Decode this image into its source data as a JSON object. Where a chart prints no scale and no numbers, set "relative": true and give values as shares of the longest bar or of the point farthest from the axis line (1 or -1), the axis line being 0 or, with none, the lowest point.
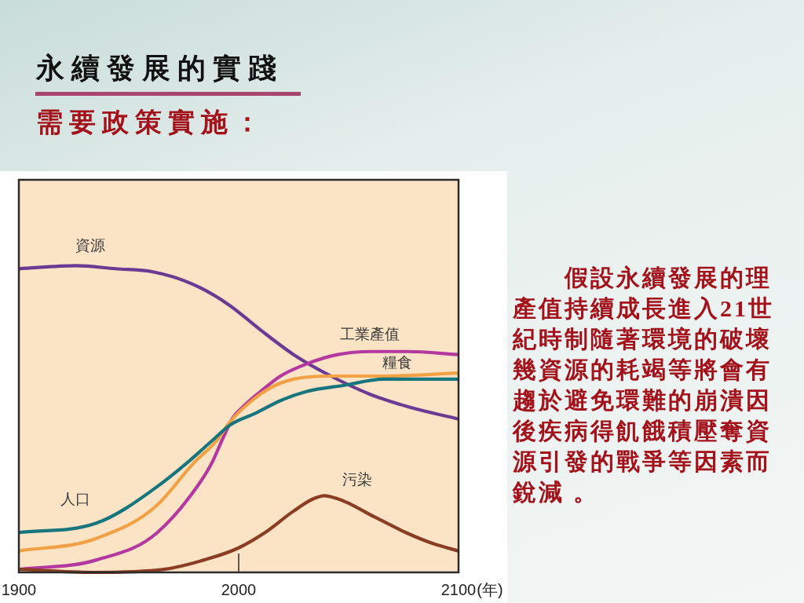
{
  "chart_data": {
    "type": "line",
    "title": "永續發展的實踐",
    "subtitle": "需要政策實施：",
    "xlabel": "(年)",
    "relative": true,
    "xlim": [
      1900,
      2100
    ],
    "xticks": [
      1900,
      2000,
      2100
    ],
    "series": [
      {
        "name": "資源",
        "color": "#6b3a93",
        "x": [
          1900,
          1926,
          1944,
          1961,
          1979,
          1996,
          2010,
          2025,
          2042,
          2060,
          2077,
          2100
        ],
        "values": [
          0.99,
          1.0,
          0.99,
          0.98,
          0.94,
          0.87,
          0.79,
          0.71,
          0.64,
          0.58,
          0.54,
          0.5
        ]
      },
      {
        "name": "工業產值",
        "color": "#b3389f",
        "x": [
          1900,
          1935,
          1963,
          1977,
          1988,
          1993,
          1997,
          2002,
          2010,
          2019,
          2031,
          2045,
          2060,
          2077,
          2100
        ],
        "values": [
          0.01,
          0.04,
          0.13,
          0.24,
          0.36,
          0.44,
          0.5,
          0.54,
          0.59,
          0.64,
          0.68,
          0.71,
          0.72,
          0.72,
          0.71
        ]
      },
      {
        "name": "糧食",
        "color": "#f1a043",
        "x": [
          1900,
          1935,
          1963,
          1980,
          1990,
          1996,
          2006,
          2014,
          2025,
          2043,
          2066,
          2100
        ],
        "values": [
          0.07,
          0.11,
          0.22,
          0.36,
          0.43,
          0.49,
          0.56,
          0.6,
          0.63,
          0.64,
          0.64,
          0.65
        ]
      },
      {
        "name": "人口",
        "color": "#17767d",
        "x": [
          1900,
          1935,
          1963,
          1977,
          1988,
          1996,
          2008,
          2019,
          2031,
          2048,
          2066,
          2100
        ],
        "values": [
          0.13,
          0.16,
          0.28,
          0.36,
          0.43,
          0.48,
          0.52,
          0.56,
          0.59,
          0.61,
          0.63,
          0.63
        ]
      },
      {
        "name": "污染",
        "color": "#8a3d22",
        "x": [
          1900,
          1934,
          1966,
          1984,
          2000,
          2012,
          2025,
          2034,
          2039,
          2045,
          2062,
          2076,
          2090,
          2100
        ],
        "values": [
          0.01,
          0.0,
          0.01,
          0.04,
          0.08,
          0.13,
          0.2,
          0.24,
          0.25,
          0.24,
          0.18,
          0.13,
          0.09,
          0.07
        ]
      }
    ],
    "annotations": [
      "假設永續發展的理產值持續成長進入21世紀時制隨著環境的破壞幾資源的耗竭等將會有趨於避免環難的崩潰因後疾病得飢餓積壓奪資源引發的戰爭等因素而銳減 。"
    ]
  }
}
